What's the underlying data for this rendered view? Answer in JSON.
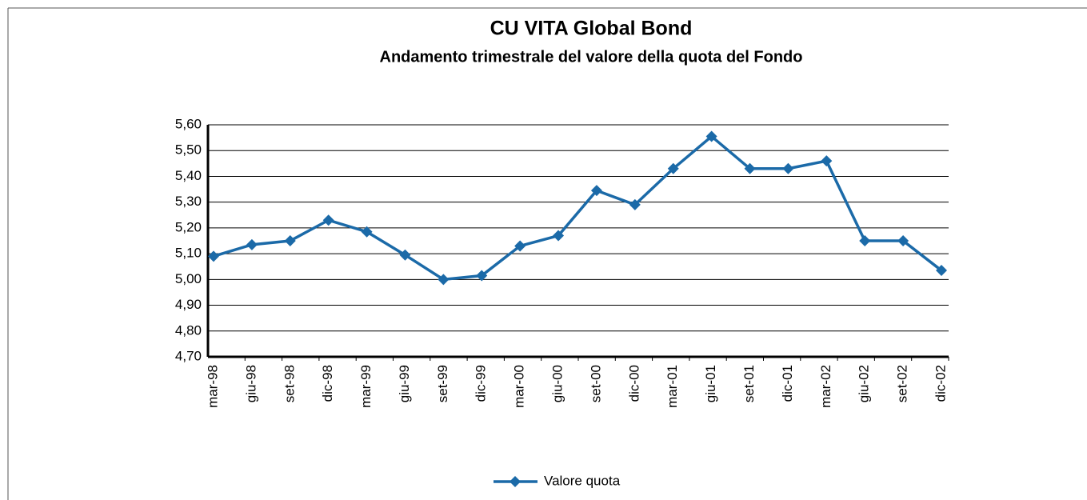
{
  "chart_data": {
    "type": "line",
    "title": "CU VITA Global Bond",
    "subtitle": "Andamento trimestrale del valore della quota del Fondo",
    "categories": [
      "mar-98",
      "giu-98",
      "set-98",
      "dic-98",
      "mar-99",
      "giu-99",
      "set-99",
      "dic-99",
      "mar-00",
      "giu-00",
      "set-00",
      "dic-00",
      "mar-01",
      "giu-01",
      "set-01",
      "dic-01",
      "mar-02",
      "giu-02",
      "set-02",
      "dic-02"
    ],
    "series": [
      {
        "name": "Valore quota",
        "color": "#1b6aa8",
        "values": [
          5.09,
          5.135,
          5.15,
          5.23,
          5.185,
          5.095,
          5.0,
          5.015,
          5.13,
          5.17,
          5.345,
          5.29,
          5.43,
          5.555,
          5.43,
          5.43,
          5.46,
          5.15,
          5.15,
          5.035
        ]
      }
    ],
    "ylim": [
      4.7,
      5.6
    ],
    "yticks": [
      {
        "value": 4.7,
        "label": "4,70"
      },
      {
        "value": 4.8,
        "label": "4,80"
      },
      {
        "value": 4.9,
        "label": "4,90"
      },
      {
        "value": 5.0,
        "label": "5,00"
      },
      {
        "value": 5.1,
        "label": "5,10"
      },
      {
        "value": 5.2,
        "label": "5,20"
      },
      {
        "value": 5.3,
        "label": "5,30"
      },
      {
        "value": 5.4,
        "label": "5,40"
      },
      {
        "value": 5.5,
        "label": "5,50"
      },
      {
        "value": 5.6,
        "label": "5,60"
      }
    ],
    "grid": true,
    "legend": "bottom"
  }
}
